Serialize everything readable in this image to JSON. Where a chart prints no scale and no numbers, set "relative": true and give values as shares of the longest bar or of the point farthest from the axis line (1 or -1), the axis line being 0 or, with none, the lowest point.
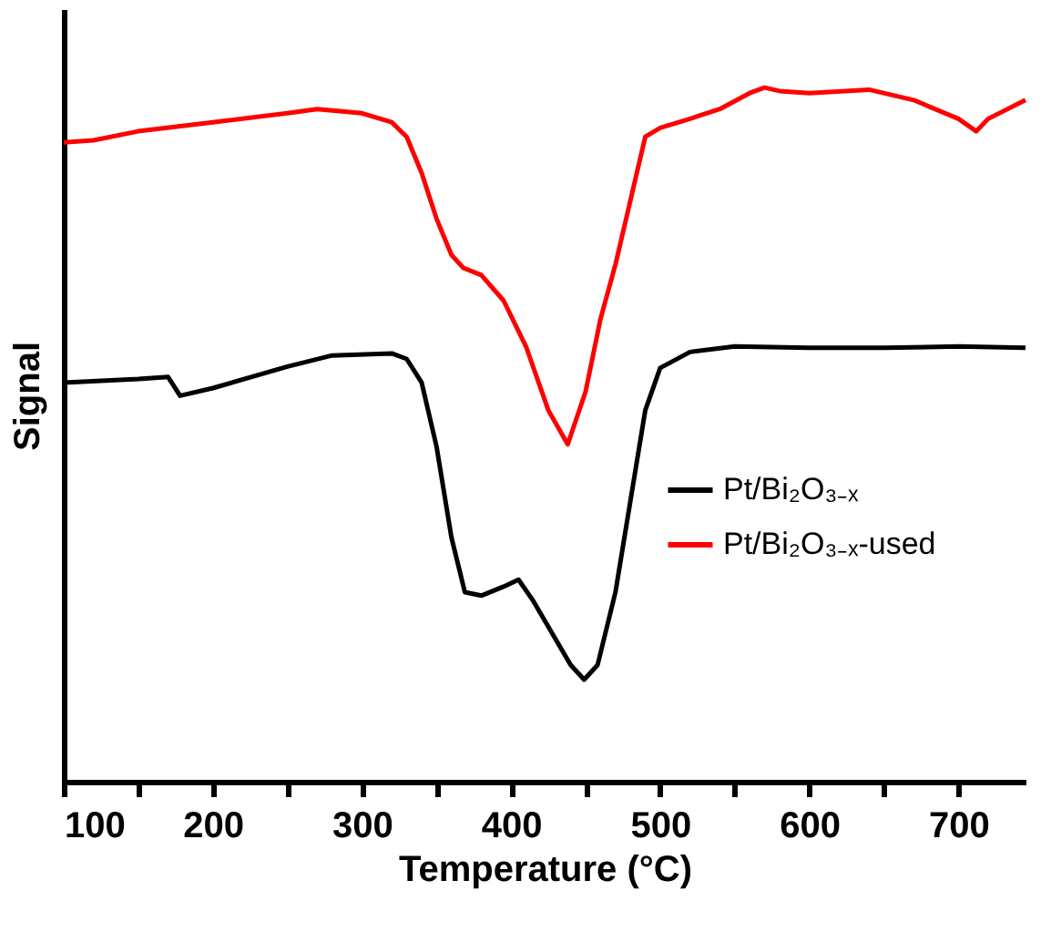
{
  "chart_data": {
    "type": "line",
    "xlabel": "Temperature (°C)",
    "ylabel": "Signal",
    "relative": true,
    "xlim": [
      100,
      745
    ],
    "xticks": [
      100,
      {
        "value": 150,
        "label": null
      },
      200,
      {
        "value": 250,
        "label": null
      },
      300,
      {
        "value": 350,
        "label": null
      },
      400,
      {
        "value": 450,
        "label": null
      },
      500,
      {
        "value": 550,
        "label": null
      },
      600,
      {
        "value": 650,
        "label": null
      },
      700
    ],
    "legend": "right",
    "grid": false,
    "marker": "none",
    "line_style": "solid",
    "series": [
      {
        "name": "Pt/Bi₂O₃₋ₓ",
        "color": "#000000",
        "x": [
          100,
          150,
          170,
          178,
          200,
          250,
          280,
          320,
          330,
          340,
          350,
          360,
          369,
          380,
          395,
          405,
          415,
          440,
          449,
          458,
          470,
          480,
          490,
          500,
          520,
          550,
          600,
          650,
          700,
          745
        ],
        "values": [
          0.575,
          0.58,
          0.583,
          0.556,
          0.567,
          0.598,
          0.614,
          0.617,
          0.609,
          0.575,
          0.483,
          0.352,
          0.273,
          0.268,
          0.281,
          0.291,
          0.26,
          0.168,
          0.147,
          0.168,
          0.273,
          0.404,
          0.535,
          0.596,
          0.619,
          0.627,
          0.625,
          0.625,
          0.627,
          0.625
        ]
      },
      {
        "name": "Pt/Bi₂O₃₋ₓ-used",
        "color": "#ff0000",
        "x": [
          100,
          120,
          150,
          200,
          250,
          270,
          300,
          320,
          330,
          340,
          350,
          360,
          368,
          380,
          395,
          410,
          425,
          438,
          450,
          460,
          470,
          480,
          490,
          500,
          520,
          540,
          560,
          570,
          580,
          600,
          640,
          670,
          700,
          712,
          720,
          745
        ],
        "values": [
          0.921,
          0.924,
          0.937,
          0.95,
          0.963,
          0.969,
          0.963,
          0.95,
          0.929,
          0.877,
          0.811,
          0.759,
          0.74,
          0.73,
          0.693,
          0.627,
          0.535,
          0.486,
          0.562,
          0.667,
          0.745,
          0.837,
          0.929,
          0.942,
          0.955,
          0.969,
          0.992,
          1.0,
          0.995,
          0.992,
          0.997,
          0.982,
          0.955,
          0.937,
          0.955,
          0.982
        ]
      }
    ]
  }
}
